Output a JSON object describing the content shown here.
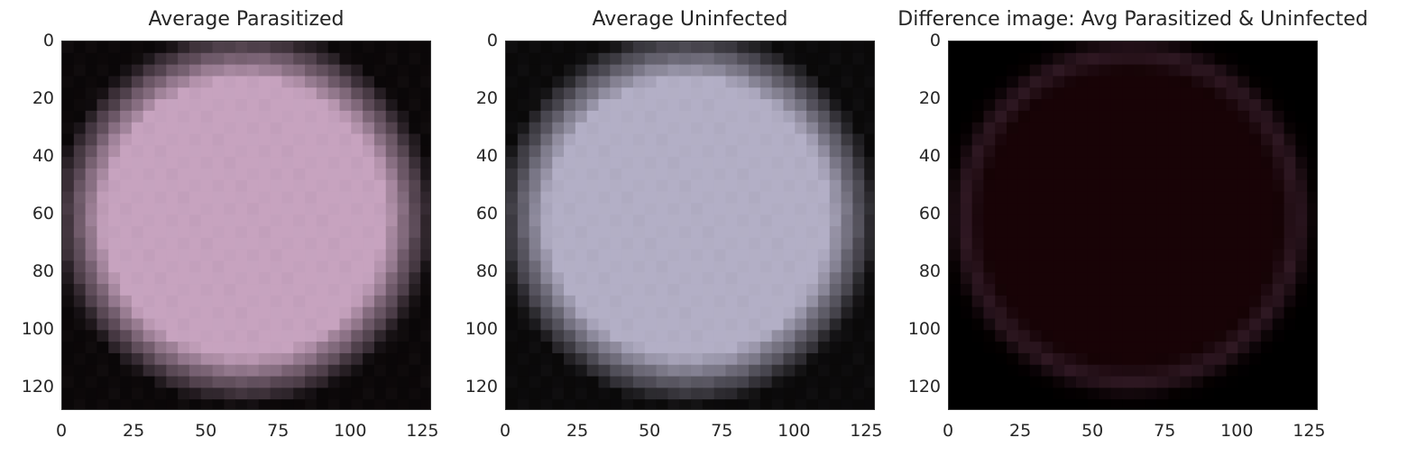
{
  "chart_data": [
    {
      "type": "heatmap",
      "title": "Average Parasitized",
      "image": {
        "width": 128,
        "height": 128,
        "center_color": "#c7a3bf",
        "edge_color": "#0a0708"
      },
      "xticks": [
        "0",
        "25",
        "50",
        "75",
        "100",
        "125"
      ],
      "yticks": [
        "0",
        "20",
        "40",
        "60",
        "80",
        "100",
        "120"
      ],
      "xlim": [
        0,
        128
      ],
      "ylim": [
        128,
        0
      ]
    },
    {
      "type": "heatmap",
      "title": "Average Uninfected",
      "image": {
        "width": 128,
        "height": 128,
        "center_color": "#b3afc6",
        "edge_color": "#0a0909"
      },
      "xticks": [
        "0",
        "25",
        "50",
        "75",
        "100",
        "125"
      ],
      "yticks": [
        "0",
        "20",
        "40",
        "60",
        "80",
        "100",
        "120"
      ],
      "xlim": [
        0,
        128
      ],
      "ylim": [
        128,
        0
      ]
    },
    {
      "type": "heatmap",
      "title": "Difference image: Avg Parasitized & Uninfected",
      "image": {
        "width": 128,
        "height": 128,
        "center_color": "#180306",
        "edge_color": "#000000",
        "ring_color": "#4a2a3c"
      },
      "xticks": [
        "0",
        "25",
        "50",
        "75",
        "100",
        "125"
      ],
      "yticks": [
        "0",
        "20",
        "40",
        "60",
        "80",
        "100",
        "120"
      ],
      "xlim": [
        0,
        128
      ],
      "ylim": [
        128,
        0
      ]
    }
  ]
}
